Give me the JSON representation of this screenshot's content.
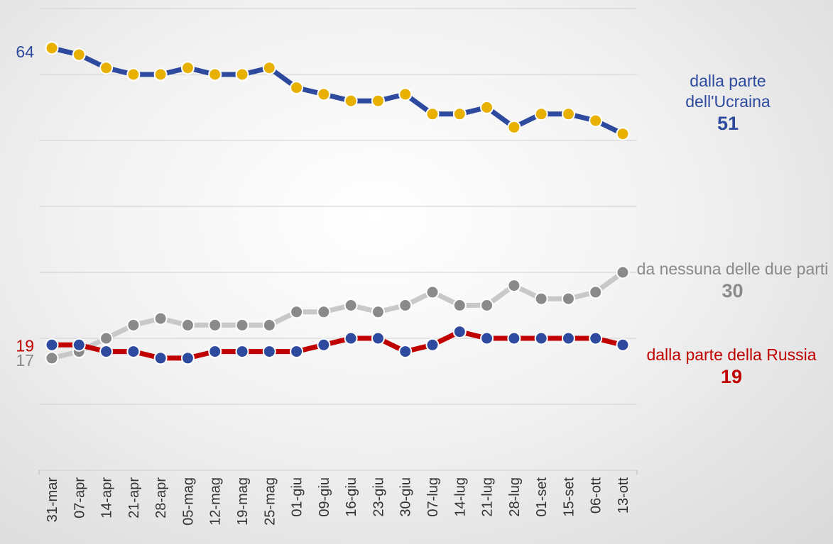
{
  "chart_data": {
    "type": "line",
    "categories": [
      "31-mar",
      "07-apr",
      "14-apr",
      "21-apr",
      "28-apr",
      "05-mag",
      "12-mag",
      "19-mag",
      "25-mag",
      "01-giu",
      "09-giu",
      "16-giu",
      "23-giu",
      "30-giu",
      "07-lug",
      "14-lug",
      "21-lug",
      "28-lug",
      "01-set",
      "15-set",
      "06-ott",
      "13-ott"
    ],
    "series": [
      {
        "name": "dalla parte dell'Ucraina",
        "color": "#2e4a9e",
        "marker_color": "#e8b000",
        "label_color": "#2e4a9e",
        "values": [
          64,
          63,
          61,
          60,
          60,
          61,
          60,
          60,
          61,
          58,
          57,
          56,
          56,
          57,
          54,
          54,
          55,
          52,
          54,
          54,
          53,
          51
        ]
      },
      {
        "name": "da nessuna delle due parti",
        "color": "#c8c8c8",
        "marker_color": "#8a8a8a",
        "label_color": "#8a8a8a",
        "values": [
          17,
          18,
          20,
          22,
          23,
          22,
          22,
          22,
          22,
          24,
          24,
          25,
          24,
          25,
          27,
          25,
          25,
          28,
          26,
          26,
          27,
          30
        ]
      },
      {
        "name": "dalla parte della Russia",
        "color": "#c00000",
        "marker_color": "#2e4a9e",
        "label_color": "#c00000",
        "values": [
          19,
          19,
          18,
          18,
          17,
          17,
          18,
          18,
          18,
          18,
          19,
          20,
          20,
          18,
          19,
          21,
          20,
          20,
          20,
          20,
          20,
          19
        ]
      }
    ],
    "ylim": [
      0,
      70
    ],
    "yticks": [
      0,
      10,
      20,
      30,
      40,
      50,
      60,
      70
    ],
    "grid": true
  }
}
